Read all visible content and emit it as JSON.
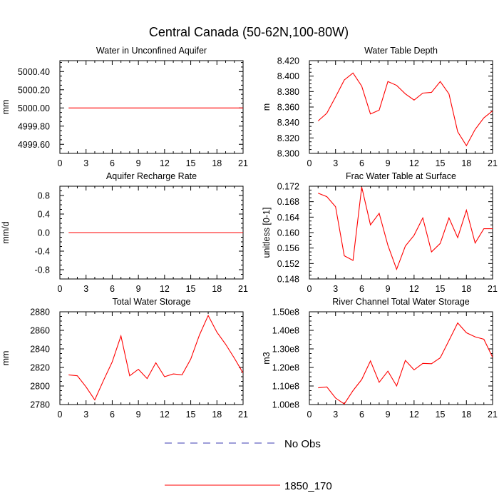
{
  "figure": {
    "title": "Central Canada (50-62N,100-80W)",
    "legend": {
      "placement": "bottom-center",
      "entries": [
        {
          "label": "No Obs",
          "color": "#3b3bb0",
          "style": "dashed"
        },
        {
          "label": "1850_170",
          "color": "#ff0000",
          "style": "solid"
        }
      ]
    }
  },
  "chart_data": [
    {
      "type": "line",
      "title": "Water in Unconfined Aquifer",
      "xlabel": "",
      "ylabel": "mm",
      "xlim": [
        0,
        21
      ],
      "xticks": [
        0,
        3,
        6,
        9,
        12,
        15,
        18,
        21
      ],
      "ylim": [
        4999.5,
        5000.52
      ],
      "yticks": [
        4999.6,
        4999.8,
        5000.0,
        5000.2,
        5000.4
      ],
      "ytick_labels": [
        "4999.60",
        "4999.80",
        "5000.00",
        "5000.20",
        "5000.40"
      ],
      "grid": false,
      "series": [
        {
          "name": "1850_170",
          "color": "#ff0000",
          "x": [
            1,
            2,
            3,
            4,
            5,
            6,
            7,
            8,
            9,
            10,
            11,
            12,
            13,
            14,
            15,
            16,
            17,
            18,
            19,
            20,
            21
          ],
          "values": [
            5000,
            5000,
            5000,
            5000,
            5000,
            5000,
            5000,
            5000,
            5000,
            5000,
            5000,
            5000,
            5000,
            5000,
            5000,
            5000,
            5000,
            5000,
            5000,
            5000,
            5000
          ]
        }
      ]
    },
    {
      "type": "line",
      "title": "Water Table Depth",
      "xlabel": "",
      "ylabel": "m",
      "xlim": [
        0,
        21
      ],
      "xticks": [
        0,
        3,
        6,
        9,
        12,
        15,
        18,
        21
      ],
      "ylim": [
        8.3,
        8.42
      ],
      "yticks": [
        8.3,
        8.32,
        8.34,
        8.36,
        8.38,
        8.4,
        8.42
      ],
      "ytick_labels": [
        "8.300",
        "8.320",
        "8.340",
        "8.360",
        "8.380",
        "8.400",
        "8.420"
      ],
      "grid": false,
      "series": [
        {
          "name": "1850_170",
          "color": "#ff0000",
          "x": [
            1,
            2,
            3,
            4,
            5,
            6,
            7,
            8,
            9,
            10,
            11,
            12,
            13,
            14,
            15,
            16,
            17,
            18,
            19,
            20,
            21
          ],
          "values": [
            8.342,
            8.352,
            8.373,
            8.395,
            8.404,
            8.387,
            8.351,
            8.356,
            8.393,
            8.388,
            8.377,
            8.369,
            8.378,
            8.379,
            8.393,
            8.377,
            8.328,
            8.31,
            8.331,
            8.346,
            8.355
          ]
        }
      ]
    },
    {
      "type": "line",
      "title": "Aquifer Recharge Rate",
      "xlabel": "",
      "ylabel": "mm/d",
      "xlim": [
        0,
        21
      ],
      "xticks": [
        0,
        3,
        6,
        9,
        12,
        15,
        18,
        21
      ],
      "ylim": [
        -1.0,
        1.0
      ],
      "yticks": [
        -0.8,
        -0.4,
        0.0,
        0.4,
        0.8
      ],
      "ytick_labels": [
        "-0.8",
        "-0.4",
        "0.0",
        "0.4",
        "0.8"
      ],
      "grid": false,
      "series": [
        {
          "name": "1850_170",
          "color": "#ff0000",
          "x": [
            1,
            2,
            3,
            4,
            5,
            6,
            7,
            8,
            9,
            10,
            11,
            12,
            13,
            14,
            15,
            16,
            17,
            18,
            19,
            20,
            21
          ],
          "values": [
            0,
            0,
            0,
            0,
            0,
            0,
            0,
            0,
            0,
            0,
            0,
            0,
            0,
            0,
            0,
            0,
            0,
            0,
            0,
            0,
            0
          ]
        }
      ]
    },
    {
      "type": "line",
      "title": "Frac Water Table at Surface",
      "xlabel": "",
      "ylabel": "unitless [0-1]",
      "xlim": [
        0,
        21
      ],
      "xticks": [
        0,
        3,
        6,
        9,
        12,
        15,
        18,
        21
      ],
      "ylim": [
        0.148,
        0.172
      ],
      "yticks": [
        0.148,
        0.152,
        0.156,
        0.16,
        0.164,
        0.168,
        0.172
      ],
      "ytick_labels": [
        "0.148",
        "0.152",
        "0.156",
        "0.160",
        "0.164",
        "0.168",
        "0.172"
      ],
      "grid": false,
      "series": [
        {
          "name": "1850_170",
          "color": "#ff0000",
          "x": [
            1,
            2,
            3,
            4,
            5,
            6,
            7,
            8,
            9,
            10,
            11,
            12,
            13,
            14,
            15,
            16,
            17,
            18,
            19,
            20,
            21
          ],
          "values": [
            0.1702,
            0.1693,
            0.1667,
            0.154,
            0.1528,
            0.1718,
            0.162,
            0.165,
            0.1567,
            0.1505,
            0.1565,
            0.1593,
            0.1638,
            0.155,
            0.1572,
            0.1638,
            0.1587,
            0.1658,
            0.1573,
            0.161,
            0.161
          ]
        }
      ]
    },
    {
      "type": "line",
      "title": "Total Water Storage",
      "xlabel": "",
      "ylabel": "mm",
      "xlim": [
        0,
        21
      ],
      "xticks": [
        0,
        3,
        6,
        9,
        12,
        15,
        18,
        21
      ],
      "ylim": [
        2780,
        2880
      ],
      "yticks": [
        2780,
        2800,
        2820,
        2840,
        2860,
        2880
      ],
      "ytick_labels": [
        "2780",
        "2800",
        "2820",
        "2840",
        "2860",
        "2880"
      ],
      "grid": false,
      "series": [
        {
          "name": "1850_170",
          "color": "#ff0000",
          "x": [
            1,
            2,
            3,
            4,
            5,
            6,
            7,
            8,
            9,
            10,
            11,
            12,
            13,
            14,
            15,
            16,
            17,
            18,
            19,
            20,
            21
          ],
          "values": [
            2812,
            2811,
            2799,
            2785,
            2806,
            2826,
            2854,
            2811,
            2818,
            2808,
            2825,
            2810,
            2813,
            2812,
            2829,
            2855,
            2876,
            2858,
            2845,
            2830,
            2814
          ]
        }
      ]
    },
    {
      "type": "line",
      "title": "River Channel Total Water Storage",
      "xlabel": "",
      "ylabel": "m3",
      "xlim": [
        0,
        21
      ],
      "xticks": [
        0,
        3,
        6,
        9,
        12,
        15,
        18,
        21
      ],
      "ylim": [
        100000000.0,
        150000000.0
      ],
      "yticks": [
        100000000.0,
        110000000.0,
        120000000.0,
        130000000.0,
        140000000.0,
        150000000.0
      ],
      "ytick_labels": [
        "1.00e8",
        "1.10e8",
        "1.20e8",
        "1.30e8",
        "1.40e8",
        "1.50e8"
      ],
      "grid": false,
      "series": [
        {
          "name": "1850_170",
          "color": "#ff0000",
          "x": [
            1,
            2,
            3,
            4,
            5,
            6,
            7,
            8,
            9,
            10,
            11,
            12,
            13,
            14,
            15,
            16,
            17,
            18,
            19,
            20,
            21
          ],
          "values": [
            109000000.0,
            109500000.0,
            103500000.0,
            100300000.0,
            107500000.0,
            113500000.0,
            123500000.0,
            112000000.0,
            118000000.0,
            110000000.0,
            123800000.0,
            118700000.0,
            122200000.0,
            122000000.0,
            125200000.0,
            134500000.0,
            144000000.0,
            138700000.0,
            136500000.0,
            135200000.0,
            125500000.0
          ]
        }
      ]
    }
  ]
}
